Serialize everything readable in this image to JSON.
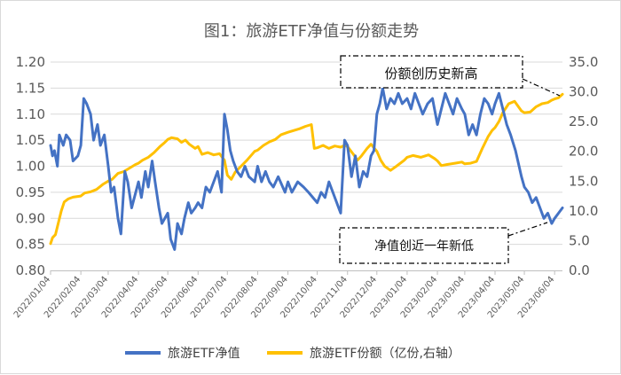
{
  "chart_data": {
    "type": "line",
    "title": "图1：旅游ETF净值与份额走势",
    "y_left": {
      "ylim": [
        0.8,
        1.2
      ],
      "ticks": [
        "0.80",
        "0.85",
        "0.90",
        "0.95",
        "1.00",
        "1.05",
        "1.10",
        "1.15",
        "1.20"
      ]
    },
    "y_right": {
      "ylim": [
        0,
        35
      ],
      "ticks": [
        "0.0",
        "5.0",
        "10.0",
        "15.0",
        "20.0",
        "25.0",
        "30.0",
        "35.0"
      ]
    },
    "x_ticks": [
      "2022/01/04",
      "2022/02/04",
      "2022/03/04",
      "2022/04/04",
      "2022/05/04",
      "2022/06/04",
      "2022/07/04",
      "2022/08/04",
      "2022/09/04",
      "2022/10/04",
      "2022/11/04",
      "2022/12/04",
      "2023/01/04",
      "2023/02/04",
      "2023/03/04",
      "2023/04/04",
      "2023/05/04",
      "2023/06/04"
    ],
    "grid": "horizontal",
    "legend_position": "bottom",
    "annotations": [
      "份额创历史新高",
      "净值创近一年新低"
    ],
    "series": [
      {
        "name": "旅游ETF净值",
        "axis": "left",
        "color": "#4472c4",
        "points": [
          [
            "2022/01/04",
            1.04
          ],
          [
            "2022/01/06",
            1.02
          ],
          [
            "2022/01/08",
            1.03
          ],
          [
            "2022/01/11",
            1.0
          ],
          [
            "2022/01/13",
            1.06
          ],
          [
            "2022/01/17",
            1.04
          ],
          [
            "2022/01/20",
            1.06
          ],
          [
            "2022/01/24",
            1.05
          ],
          [
            "2022/01/27",
            1.01
          ],
          [
            "2022/02/01",
            1.02
          ],
          [
            "2022/02/04",
            1.04
          ],
          [
            "2022/02/07",
            1.13
          ],
          [
            "2022/02/10",
            1.12
          ],
          [
            "2022/02/14",
            1.1
          ],
          [
            "2022/02/17",
            1.05
          ],
          [
            "2022/02/21",
            1.08
          ],
          [
            "2022/02/24",
            1.04
          ],
          [
            "2022/02/28",
            1.06
          ],
          [
            "2022/03/04",
            1.0
          ],
          [
            "2022/03/07",
            0.95
          ],
          [
            "2022/03/10",
            0.96
          ],
          [
            "2022/03/14",
            0.9
          ],
          [
            "2022/03/17",
            0.87
          ],
          [
            "2022/03/21",
            0.99
          ],
          [
            "2022/03/24",
            0.97
          ],
          [
            "2022/03/28",
            0.92
          ],
          [
            "2022/04/04",
            0.97
          ],
          [
            "2022/04/07",
            0.94
          ],
          [
            "2022/04/11",
            0.99
          ],
          [
            "2022/04/14",
            0.96
          ],
          [
            "2022/04/18",
            1.01
          ],
          [
            "2022/04/21",
            0.97
          ],
          [
            "2022/04/25",
            0.92
          ],
          [
            "2022/04/28",
            0.89
          ],
          [
            "2022/05/04",
            0.91
          ],
          [
            "2022/05/07",
            0.86
          ],
          [
            "2022/05/11",
            0.84
          ],
          [
            "2022/05/14",
            0.89
          ],
          [
            "2022/05/18",
            0.87
          ],
          [
            "2022/05/21",
            0.9
          ],
          [
            "2022/05/25",
            0.93
          ],
          [
            "2022/05/28",
            0.91
          ],
          [
            "2022/06/01",
            0.92
          ],
          [
            "2022/06/04",
            0.93
          ],
          [
            "2022/06/08",
            0.92
          ],
          [
            "2022/06/12",
            0.96
          ],
          [
            "2022/06/16",
            0.95
          ],
          [
            "2022/06/20",
            0.97
          ],
          [
            "2022/06/24",
            0.99
          ],
          [
            "2022/06/28",
            0.95
          ],
          [
            "2022/07/01",
            1.1
          ],
          [
            "2022/07/04",
            1.07
          ],
          [
            "2022/07/07",
            1.03
          ],
          [
            "2022/07/10",
            1.01
          ],
          [
            "2022/07/14",
            0.99
          ],
          [
            "2022/07/18",
            0.98
          ],
          [
            "2022/07/22",
            1.0
          ],
          [
            "2022/07/26",
            0.98
          ],
          [
            "2022/08/01",
            0.97
          ],
          [
            "2022/08/04",
            1.0
          ],
          [
            "2022/08/08",
            0.97
          ],
          [
            "2022/08/12",
            0.99
          ],
          [
            "2022/08/16",
            0.97
          ],
          [
            "2022/08/20",
            0.96
          ],
          [
            "2022/08/25",
            0.98
          ],
          [
            "2022/09/01",
            0.95
          ],
          [
            "2022/09/04",
            0.97
          ],
          [
            "2022/09/08",
            0.95
          ],
          [
            "2022/09/14",
            0.97
          ],
          [
            "2022/09/20",
            0.96
          ],
          [
            "2022/09/25",
            0.95
          ],
          [
            "2022/10/04",
            0.93
          ],
          [
            "2022/10/08",
            0.95
          ],
          [
            "2022/10/12",
            0.94
          ],
          [
            "2022/10/16",
            0.97
          ],
          [
            "2022/10/20",
            0.95
          ],
          [
            "2022/10/24",
            0.93
          ],
          [
            "2022/10/28",
            0.91
          ],
          [
            "2022/11/01",
            1.05
          ],
          [
            "2022/11/04",
            1.04
          ],
          [
            "2022/11/08",
            0.98
          ],
          [
            "2022/11/12",
            1.02
          ],
          [
            "2022/11/16",
            0.96
          ],
          [
            "2022/11/20",
            0.99
          ],
          [
            "2022/11/24",
            0.98
          ],
          [
            "2022/11/28",
            1.02
          ],
          [
            "2022/12/01",
            1.03
          ],
          [
            "2022/12/04",
            1.1
          ],
          [
            "2022/12/07",
            1.12
          ],
          [
            "2022/12/10",
            1.15
          ],
          [
            "2022/12/14",
            1.11
          ],
          [
            "2022/12/18",
            1.13
          ],
          [
            "2022/12/22",
            1.12
          ],
          [
            "2022/12/26",
            1.14
          ],
          [
            "2022/12/30",
            1.12
          ],
          [
            "2023/01/04",
            1.13
          ],
          [
            "2023/01/08",
            1.11
          ],
          [
            "2023/01/12",
            1.14
          ],
          [
            "2023/01/16",
            1.12
          ],
          [
            "2023/01/20",
            1.1
          ],
          [
            "2023/01/25",
            1.12
          ],
          [
            "2023/01/30",
            1.13
          ],
          [
            "2023/02/04",
            1.08
          ],
          [
            "2023/02/08",
            1.11
          ],
          [
            "2023/02/12",
            1.14
          ],
          [
            "2023/02/16",
            1.12
          ],
          [
            "2023/02/20",
            1.1
          ],
          [
            "2023/02/24",
            1.13
          ],
          [
            "2023/03/01",
            1.11
          ],
          [
            "2023/03/04",
            1.1
          ],
          [
            "2023/03/08",
            1.06
          ],
          [
            "2023/03/12",
            1.08
          ],
          [
            "2023/03/16",
            1.06
          ],
          [
            "2023/03/20",
            1.1
          ],
          [
            "2023/03/24",
            1.13
          ],
          [
            "2023/03/28",
            1.12
          ],
          [
            "2023/04/01",
            1.1
          ],
          [
            "2023/04/04",
            1.12
          ],
          [
            "2023/04/08",
            1.14
          ],
          [
            "2023/04/12",
            1.11
          ],
          [
            "2023/04/16",
            1.08
          ],
          [
            "2023/04/20",
            1.06
          ],
          [
            "2023/04/25",
            1.03
          ],
          [
            "2023/05/01",
            0.98
          ],
          [
            "2023/05/04",
            0.96
          ],
          [
            "2023/05/08",
            0.95
          ],
          [
            "2023/05/12",
            0.93
          ],
          [
            "2023/05/16",
            0.94
          ],
          [
            "2023/05/20",
            0.92
          ],
          [
            "2023/05/24",
            0.9
          ],
          [
            "2023/05/28",
            0.91
          ],
          [
            "2023/06/01",
            0.89
          ],
          [
            "2023/06/04",
            0.9
          ],
          [
            "2023/06/08",
            0.91
          ],
          [
            "2023/06/12",
            0.92
          ]
        ]
      },
      {
        "name": "旅游ETF份额（亿份,右轴）",
        "axis": "right",
        "color": "#ffc000",
        "points": [
          [
            "2022/01/04",
            4.5
          ],
          [
            "2022/01/06",
            5.5
          ],
          [
            "2022/01/09",
            6.0
          ],
          [
            "2022/01/12",
            8.0
          ],
          [
            "2022/01/15",
            10.0
          ],
          [
            "2022/01/18",
            11.5
          ],
          [
            "2022/01/22",
            12.0
          ],
          [
            "2022/01/27",
            12.3
          ],
          [
            "2022/02/04",
            12.5
          ],
          [
            "2022/02/08",
            13.0
          ],
          [
            "2022/02/14",
            13.2
          ],
          [
            "2022/02/20",
            13.6
          ],
          [
            "2022/02/27",
            14.5
          ],
          [
            "2022/03/04",
            15.0
          ],
          [
            "2022/03/08",
            15.3
          ],
          [
            "2022/03/14",
            16.3
          ],
          [
            "2022/03/20",
            16.6
          ],
          [
            "2022/03/26",
            17.2
          ],
          [
            "2022/04/01",
            17.8
          ],
          [
            "2022/04/04",
            18.0
          ],
          [
            "2022/04/08",
            18.5
          ],
          [
            "2022/04/14",
            19.0
          ],
          [
            "2022/04/20",
            19.8
          ],
          [
            "2022/04/26",
            20.8
          ],
          [
            "2022/05/01",
            21.5
          ],
          [
            "2022/05/04",
            22.0
          ],
          [
            "2022/05/08",
            22.3
          ],
          [
            "2022/05/14",
            22.1
          ],
          [
            "2022/05/18",
            21.5
          ],
          [
            "2022/05/22",
            21.9
          ],
          [
            "2022/05/26",
            21.2
          ],
          [
            "2022/06/01",
            20.5
          ],
          [
            "2022/06/04",
            20.8
          ],
          [
            "2022/06/08",
            19.5
          ],
          [
            "2022/06/14",
            19.8
          ],
          [
            "2022/06/20",
            19.4
          ],
          [
            "2022/06/26",
            19.6
          ],
          [
            "2022/07/01",
            18.5
          ],
          [
            "2022/07/04",
            16.0
          ],
          [
            "2022/07/08",
            15.3
          ],
          [
            "2022/07/12",
            16.5
          ],
          [
            "2022/07/18",
            17.5
          ],
          [
            "2022/07/24",
            18.5
          ],
          [
            "2022/08/01",
            20.0
          ],
          [
            "2022/08/04",
            20.2
          ],
          [
            "2022/08/10",
            21.0
          ],
          [
            "2022/08/16",
            21.6
          ],
          [
            "2022/08/22",
            22.0
          ],
          [
            "2022/08/28",
            22.8
          ],
          [
            "2022/09/04",
            23.2
          ],
          [
            "2022/09/10",
            23.5
          ],
          [
            "2022/09/16",
            23.8
          ],
          [
            "2022/09/22",
            24.2
          ],
          [
            "2022/09/28",
            24.5
          ],
          [
            "2022/10/01",
            20.5
          ],
          [
            "2022/10/04",
            20.6
          ],
          [
            "2022/10/10",
            21.0
          ],
          [
            "2022/10/16",
            20.5
          ],
          [
            "2022/10/22",
            20.9
          ],
          [
            "2022/10/28",
            20.7
          ],
          [
            "2022/11/01",
            21.0
          ],
          [
            "2022/11/04",
            20.8
          ],
          [
            "2022/11/10",
            19.5
          ],
          [
            "2022/11/14",
            18.5
          ],
          [
            "2022/11/18",
            19.2
          ],
          [
            "2022/11/24",
            20.5
          ],
          [
            "2022/11/28",
            21.2
          ],
          [
            "2022/12/04",
            20.0
          ],
          [
            "2022/12/08",
            18.5
          ],
          [
            "2022/12/12",
            17.5
          ],
          [
            "2022/12/18",
            16.8
          ],
          [
            "2022/12/24",
            17.5
          ],
          [
            "2023/01/01",
            18.5
          ],
          [
            "2023/01/04",
            19.0
          ],
          [
            "2023/01/10",
            19.3
          ],
          [
            "2023/01/18",
            19.0
          ],
          [
            "2023/01/26",
            19.4
          ],
          [
            "2023/02/01",
            18.8
          ],
          [
            "2023/02/04",
            18.4
          ],
          [
            "2023/02/08",
            17.6
          ],
          [
            "2023/02/14",
            17.8
          ],
          [
            "2023/02/22",
            18.0
          ],
          [
            "2023/03/01",
            18.2
          ],
          [
            "2023/03/04",
            17.9
          ],
          [
            "2023/03/10",
            18.0
          ],
          [
            "2023/03/16",
            18.3
          ],
          [
            "2023/03/22",
            20.5
          ],
          [
            "2023/03/28",
            22.5
          ],
          [
            "2023/04/01",
            23.5
          ],
          [
            "2023/04/04",
            24.0
          ],
          [
            "2023/04/08",
            25.0
          ],
          [
            "2023/04/12",
            26.5
          ],
          [
            "2023/04/18",
            28.0
          ],
          [
            "2023/04/24",
            28.4
          ],
          [
            "2023/05/01",
            26.8
          ],
          [
            "2023/05/04",
            26.5
          ],
          [
            "2023/05/10",
            26.6
          ],
          [
            "2023/05/16",
            27.5
          ],
          [
            "2023/05/22",
            28.0
          ],
          [
            "2023/05/28",
            28.2
          ],
          [
            "2023/06/01",
            28.6
          ],
          [
            "2023/06/04",
            28.8
          ],
          [
            "2023/06/08",
            29.0
          ],
          [
            "2023/06/12",
            29.6
          ]
        ]
      }
    ]
  }
}
